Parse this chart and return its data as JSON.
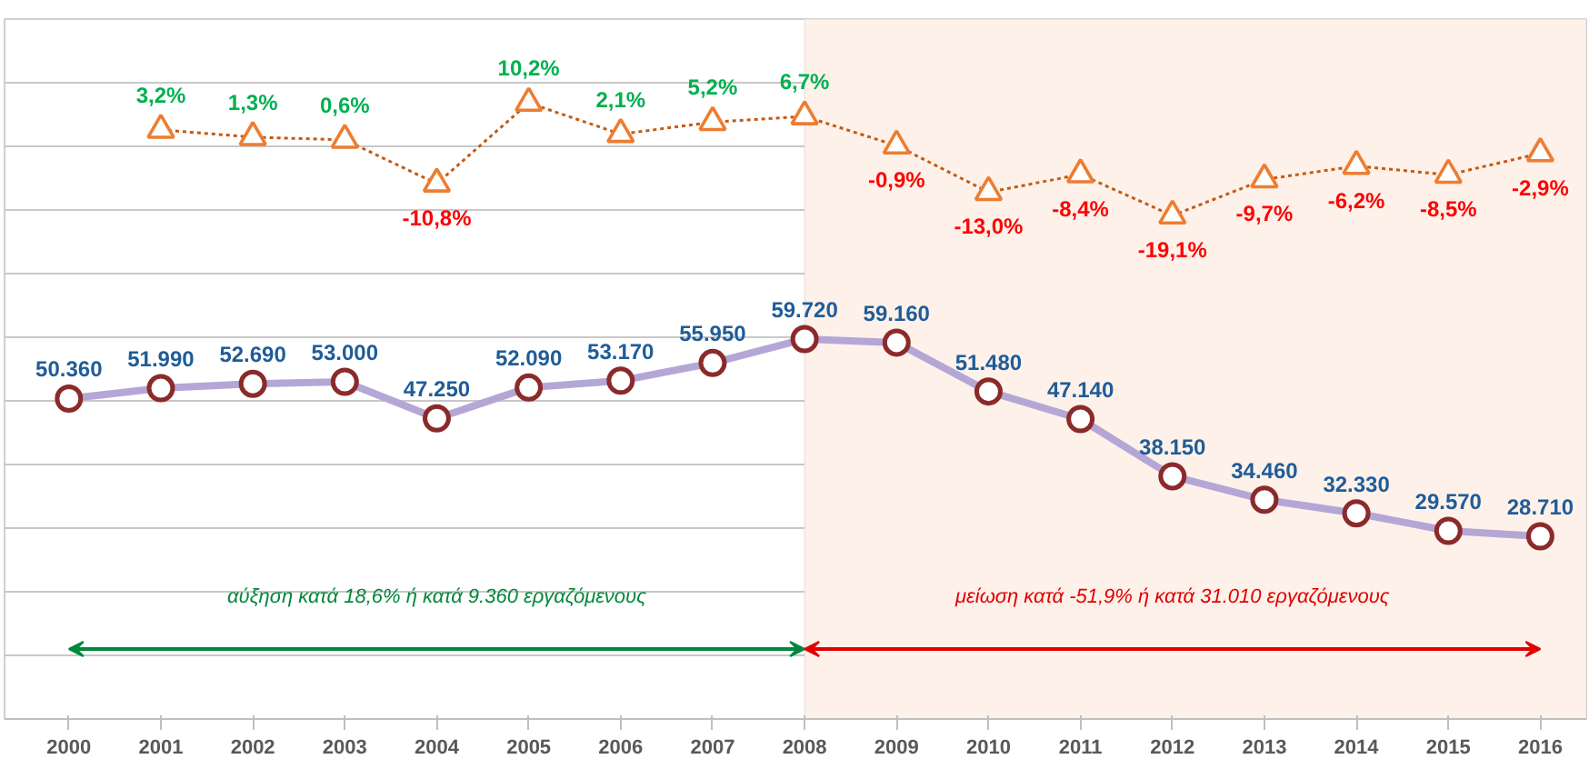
{
  "chart_data": {
    "type": "line",
    "categories": [
      "2000",
      "2001",
      "2002",
      "2003",
      "2004",
      "2005",
      "2006",
      "2007",
      "2008",
      "2009",
      "2010",
      "2011",
      "2012",
      "2013",
      "2014",
      "2015",
      "2016"
    ],
    "series": [
      {
        "color": "#b4a7d6",
        "marker": "circle",
        "line_style": "solid",
        "values": [
          50360,
          51990,
          52690,
          53000,
          47250,
          52090,
          53170,
          55950,
          59720,
          59160,
          51480,
          47140,
          38150,
          34460,
          32330,
          29570,
          28710
        ],
        "value_labels": [
          "50.360",
          "51.990",
          "52.690",
          "53.000",
          "47.250",
          "52.090",
          "53.170",
          "55.950",
          "59.720",
          "59.160",
          "51.480",
          "47.140",
          "38.150",
          "34.460",
          "32.330",
          "29.570",
          "28.710"
        ]
      },
      {
        "axis": "y2",
        "color": "#c55a11",
        "marker": "triangle",
        "line_style": "dotted",
        "values": [
          null,
          3.2,
          1.3,
          0.6,
          -10.8,
          10.2,
          2.1,
          5.2,
          6.7,
          -0.9,
          -13.0,
          -8.4,
          -19.1,
          -9.7,
          -6.2,
          -8.5,
          -2.9
        ],
        "value_labels": [
          null,
          "3,2%",
          "1,3%",
          "0,6%",
          "-10,8%",
          "10,2%",
          "2,1%",
          "5,2%",
          "6,7%",
          "-0,9%",
          "-13,0%",
          "-8,4%",
          "-19,1%",
          "-9,7%",
          "-6,2%",
          "-8,5%",
          "-2,9%"
        ]
      }
    ],
    "yticks": [
      {
        "value": 10000,
        "label": null
      },
      {
        "value": 20000,
        "label": null
      },
      {
        "value": 30000,
        "label": null
      },
      {
        "value": 40000,
        "label": null
      },
      {
        "value": 50000,
        "label": null
      },
      {
        "value": 60000,
        "label": null
      },
      {
        "value": 70000,
        "label": null
      },
      {
        "value": 80000,
        "label": null
      },
      {
        "value": 90000,
        "label": null
      },
      {
        "value": 100000,
        "label": null
      },
      {
        "value": 110000,
        "label": null
      }
    ],
    "ylim": [
      0,
      110000
    ],
    "y2lim": [
      -150,
      32
    ],
    "grid": "y",
    "tick_labels": "x",
    "bands": [
      {
        "axis": "x",
        "from": "2008",
        "to": "2016",
        "color": "#fdf1ea"
      }
    ],
    "annotations": [
      "αύξηση κατά 18,6% ή κατά 9.360 εργαζόμενους",
      "μείωση κατά -51,9% ή κατά 31.010 εργαζόμενους"
    ]
  }
}
